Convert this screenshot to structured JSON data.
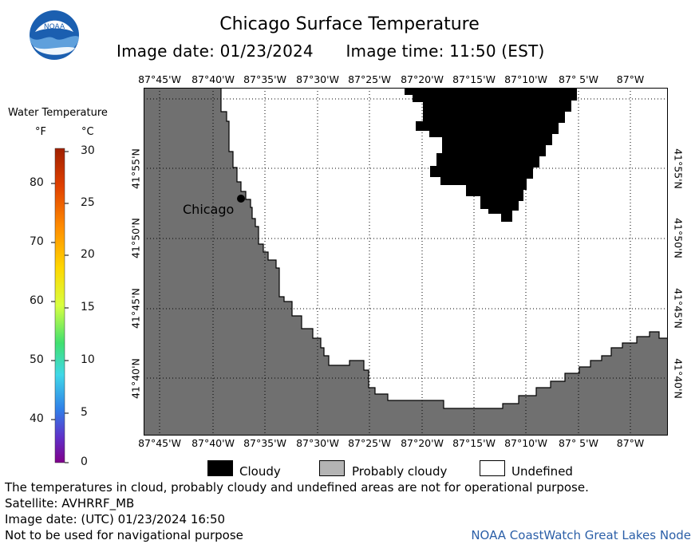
{
  "header": {
    "title": "Chicago Surface Temperature",
    "image_date_label": "Image date: 01/23/2024",
    "image_time_label": "Image time: 11:50 (EST)"
  },
  "logo": {
    "text": "NOAA"
  },
  "colorbar": {
    "title": "Water Temperature",
    "unit_f": "°F",
    "unit_c": "°C",
    "f_ticks": [
      "80",
      "70",
      "60",
      "50",
      "40"
    ],
    "c_ticks": [
      "30",
      "25",
      "20",
      "15",
      "10",
      "5",
      "0"
    ]
  },
  "map": {
    "lon_labels": [
      "87°45'W",
      "87°40'W",
      "87°35'W",
      "87°30'W",
      "87°25'W",
      "87°20'W",
      "87°15'W",
      "87°10'W",
      "87° 5'W",
      "87°W"
    ],
    "lat_labels": [
      "41°55'N",
      "41°50'N",
      "41°45'N",
      "41°40'N"
    ],
    "city_label": "Chicago",
    "land_color": "#707070",
    "cloud_color": "#000000",
    "undefined_color": "#ffffff"
  },
  "legend": {
    "items": [
      {
        "label": "Cloudy",
        "color": "#000000"
      },
      {
        "label": "Probably cloudy",
        "color": "#b4b4b4"
      },
      {
        "label": "Undefined",
        "color": "#ffffff"
      }
    ]
  },
  "footer": {
    "disclaimer": "The temperatures in cloud, probably cloudy and undefined areas are not for operational purpose.",
    "satellite": "Satellite: AVHRRF_MB",
    "utc_date": "Image date: (UTC) 01/23/2024  16:50",
    "navigation": "Not to be used for navigational purpose",
    "node": "NOAA CoastWatch Great Lakes Node"
  }
}
